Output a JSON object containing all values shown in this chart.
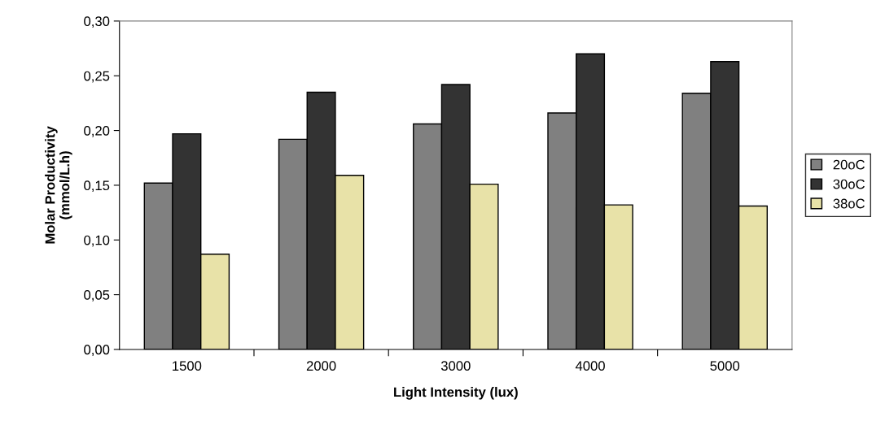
{
  "chart_data": {
    "type": "bar",
    "xlabel": "Light Intensity (lux)",
    "ylabel": "Molar Productivity\n(mmol/L.h)",
    "categories": [
      "1500",
      "2000",
      "3000",
      "4000",
      "5000"
    ],
    "series": [
      {
        "name": "20oC",
        "color": "#808080",
        "values": [
          0.152,
          0.192,
          0.206,
          0.216,
          0.234
        ]
      },
      {
        "name": "30oC",
        "color": "#333333",
        "values": [
          0.197,
          0.235,
          0.242,
          0.27,
          0.263
        ]
      },
      {
        "name": "38oC",
        "color": "#e8e2a8",
        "values": [
          0.087,
          0.159,
          0.151,
          0.132,
          0.131
        ]
      }
    ],
    "ylim": [
      0,
      0.3
    ],
    "yticks": [
      {
        "value": 0,
        "label": "0,00"
      },
      {
        "value": 0.05,
        "label": "0,05"
      },
      {
        "value": 0.1,
        "label": "0,10"
      },
      {
        "value": 0.15,
        "label": "0,15"
      },
      {
        "value": 0.2,
        "label": "0,20"
      },
      {
        "value": 0.25,
        "label": "0,25"
      },
      {
        "value": 0.3,
        "label": "0,30"
      }
    ],
    "grid": false,
    "legend": "right"
  }
}
